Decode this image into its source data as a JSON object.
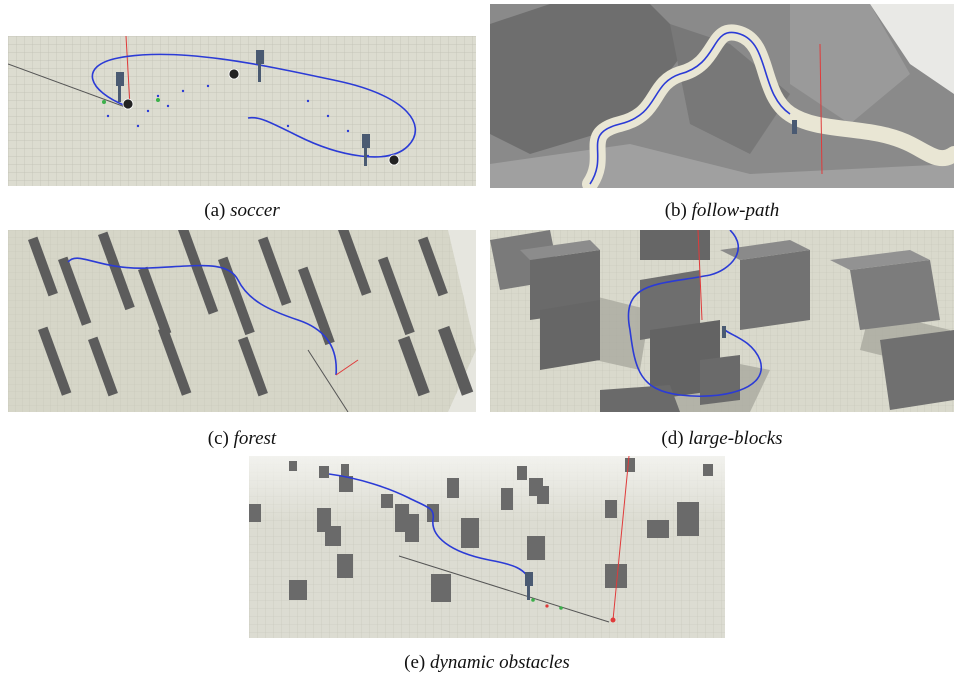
{
  "figure": {
    "panels": [
      {
        "id": "a",
        "label": "(a)",
        "name": "soccer"
      },
      {
        "id": "b",
        "label": "(b)",
        "name": "follow-path"
      },
      {
        "id": "c",
        "label": "(c)",
        "name": "forest"
      },
      {
        "id": "d",
        "label": "(d)",
        "name": "large-blocks"
      },
      {
        "id": "e",
        "label": "(e)",
        "name": "dynamic obstacles"
      }
    ]
  },
  "colors": {
    "floor": "#dcdcd0",
    "grid": "#b8b8ac",
    "path": "#2b3bd6",
    "marker": "#e03a3a",
    "block": "#6e6e6e",
    "block_top": "#8c8c8c",
    "shadow": "#a9a99f",
    "mountain": "#8e8e8e"
  }
}
